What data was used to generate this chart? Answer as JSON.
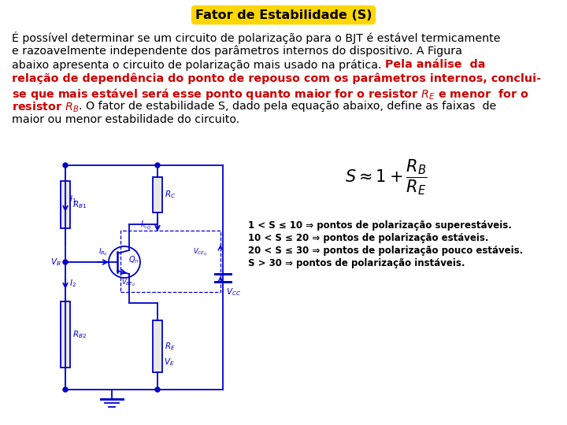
{
  "title": "Fator de Estabilidade (S)",
  "title_bg": "#FFD700",
  "title_color": "#000000",
  "circuit_color": "#0000CD",
  "bg_color": "#FFFFFF",
  "stability_lines": [
    "1 < S ≤ 10 ⇒ pontos de polarização superestáveis.",
    "10 < S ≤ 20 ⇒ pontos de polarização estáveis.",
    "20 < S ≤ 30 ⇒ pontos de polarização pouco estáveis.",
    "S > 30 ⇒ pontos de polarização instáveis."
  ],
  "text_segments": [
    {
      "text": "É possível determinar se um circuito de polarização para o BJT é estável termicamente",
      "color": "black",
      "bold": false
    },
    {
      "text": "e razoavelmente independente dos parâmetros internos do dispositivo. A Figura",
      "color": "black",
      "bold": false
    },
    {
      "text": "abaixo apresenta o circuito de polarização mais usado na prática. ",
      "color": "black",
      "bold": false
    },
    {
      "text": "Pela análise  da",
      "color": "#CC0000",
      "bold": true
    },
    {
      "text": "relação de dependência do ponto de repouso com os parâmetros internos, conclui-",
      "color": "#CC0000",
      "bold": true
    },
    {
      "text": "se que mais estável será esse ponto quanto maior for o resistor R",
      "color": "#CC0000",
      "bold": true
    },
    {
      "text": "E",
      "color": "#CC0000",
      "bold": true,
      "subscript": true
    },
    {
      "text": " e menor  for o",
      "color": "#CC0000",
      "bold": true
    },
    {
      "text": "resistor R",
      "color": "#CC0000",
      "bold": true
    },
    {
      "text": "B",
      "color": "#CC0000",
      "bold": true,
      "subscript": true
    },
    {
      "text": ". O fator de estabilidade S, dado pela equação abaixo, define as faixas  de",
      "color": "black",
      "bold": false
    },
    {
      "text": "maior ou menor estabilidade do circuito.",
      "color": "black",
      "bold": false
    }
  ]
}
